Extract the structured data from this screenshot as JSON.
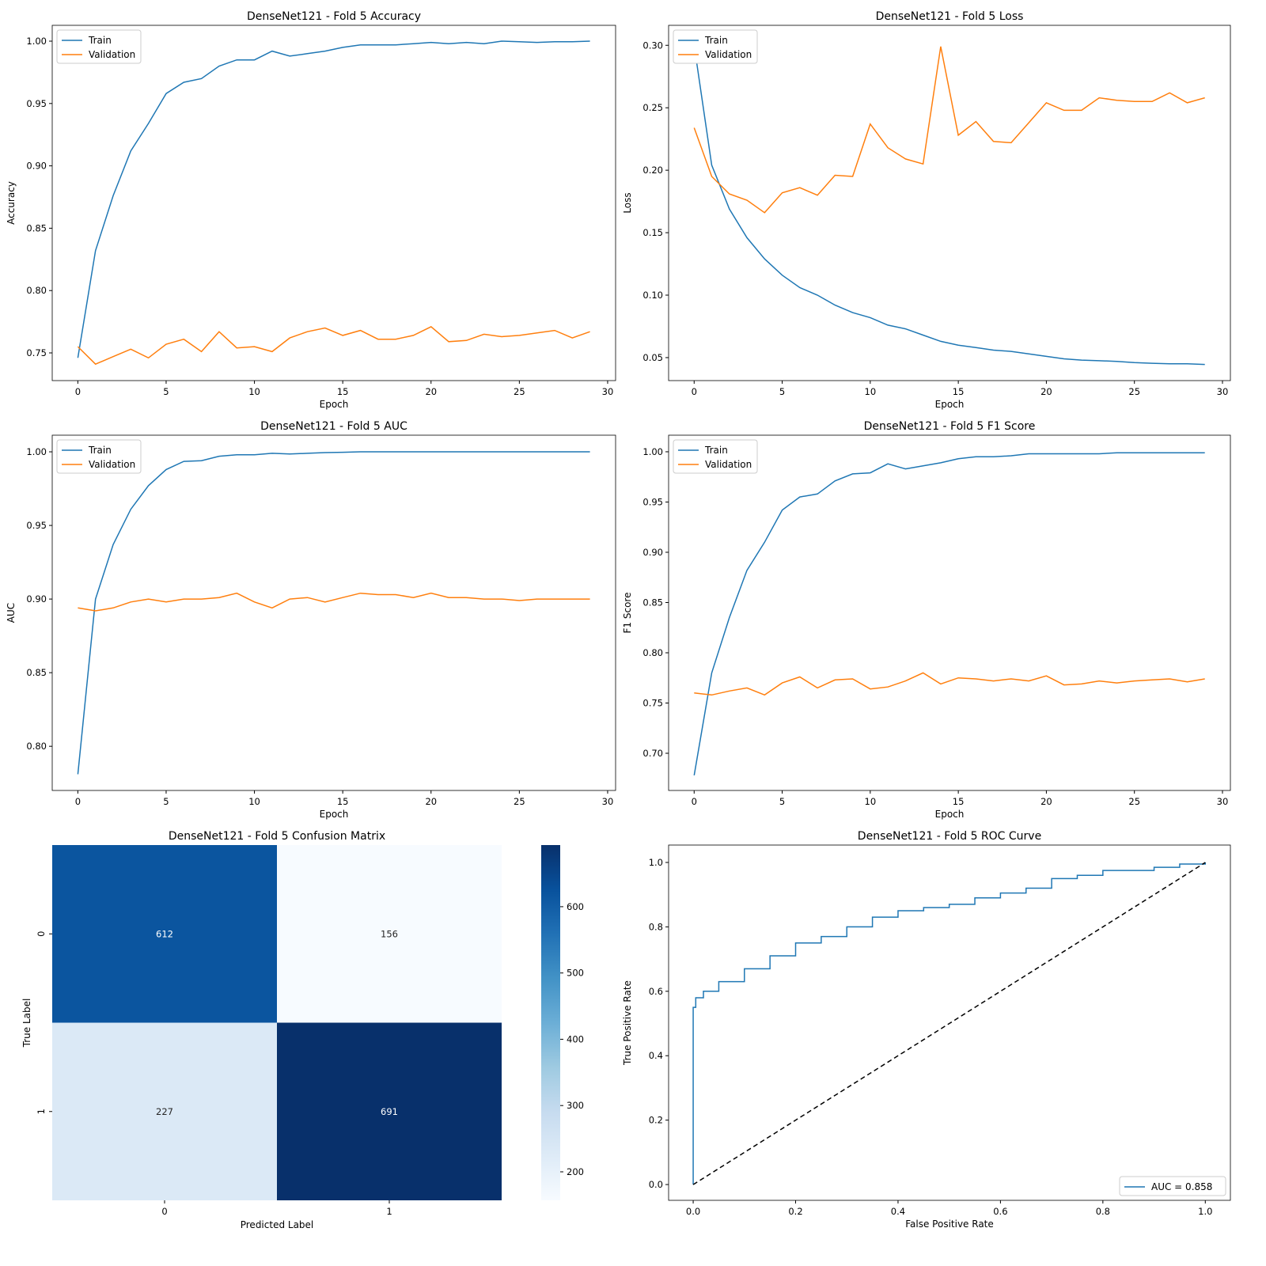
{
  "colors": {
    "train": "#1f77b4",
    "validation": "#ff7f0e",
    "diag": "#000000"
  },
  "chart_data": [
    {
      "type": "line",
      "id": "acc",
      "title": "DenseNet121 - Fold 5 Accuracy",
      "xlabel": "Epoch",
      "ylabel": "Accuracy",
      "xlim": [
        -1.45,
        30.45
      ],
      "ylim": [
        0.7278,
        1.0127
      ],
      "xticks": [
        0,
        5,
        10,
        15,
        20,
        25,
        30
      ],
      "xtick_labels": [
        "0",
        "5",
        "10",
        "15",
        "20",
        "25",
        "30"
      ],
      "yticks": [
        0.75,
        0.8,
        0.85,
        0.9,
        0.95,
        1.0
      ],
      "ytick_labels": [
        "0.75",
        "0.80",
        "0.85",
        "0.90",
        "0.95",
        "1.00"
      ],
      "legend": "upper-left",
      "series": [
        {
          "name": "Train",
          "values": [
            0.746,
            0.832,
            0.876,
            0.912,
            0.934,
            0.958,
            0.967,
            0.97,
            0.98,
            0.985,
            0.985,
            0.992,
            0.988,
            0.99,
            0.992,
            0.995,
            0.997,
            0.997,
            0.997,
            0.998,
            0.999,
            0.998,
            0.999,
            0.998,
            1.0,
            0.9995,
            0.999,
            0.9995,
            0.9995,
            1.0
          ]
        },
        {
          "name": "Validation",
          "values": [
            0.755,
            0.741,
            0.747,
            0.753,
            0.746,
            0.757,
            0.761,
            0.751,
            0.767,
            0.754,
            0.755,
            0.751,
            0.762,
            0.767,
            0.77,
            0.764,
            0.768,
            0.761,
            0.761,
            0.764,
            0.771,
            0.759,
            0.76,
            0.765,
            0.763,
            0.764,
            0.766,
            0.768,
            0.762,
            0.767
          ]
        }
      ]
    },
    {
      "type": "line",
      "id": "loss",
      "title": "DenseNet121 - Fold 5 Loss",
      "xlabel": "Epoch",
      "ylabel": "Loss",
      "xlim": [
        -1.45,
        30.45
      ],
      "ylim": [
        0.0316,
        0.316
      ],
      "xticks": [
        0,
        5,
        10,
        15,
        20,
        25,
        30
      ],
      "xtick_labels": [
        "0",
        "5",
        "10",
        "15",
        "20",
        "25",
        "30"
      ],
      "yticks": [
        0.05,
        0.1,
        0.15,
        0.2,
        0.25,
        0.3
      ],
      "ytick_labels": [
        "0.05",
        "0.10",
        "0.15",
        "0.20",
        "0.25",
        "0.30"
      ],
      "legend": "upper-left",
      "series": [
        {
          "name": "Train",
          "values": [
            0.3,
            0.204,
            0.169,
            0.146,
            0.129,
            0.116,
            0.106,
            0.1,
            0.092,
            0.086,
            0.082,
            0.076,
            0.073,
            0.068,
            0.063,
            0.06,
            0.058,
            0.056,
            0.055,
            0.053,
            0.051,
            0.049,
            0.048,
            0.0475,
            0.047,
            0.046,
            0.0455,
            0.045,
            0.045,
            0.0445
          ]
        },
        {
          "name": "Validation",
          "values": [
            0.234,
            0.195,
            0.181,
            0.176,
            0.166,
            0.182,
            0.186,
            0.18,
            0.196,
            0.195,
            0.237,
            0.218,
            0.209,
            0.205,
            0.299,
            0.228,
            0.239,
            0.223,
            0.222,
            0.238,
            0.254,
            0.248,
            0.248,
            0.258,
            0.256,
            0.255,
            0.255,
            0.262,
            0.254,
            0.258
          ]
        }
      ]
    },
    {
      "type": "line",
      "id": "auc",
      "title": "DenseNet121 - Fold 5 AUC",
      "xlabel": "Epoch",
      "ylabel": "AUC",
      "xlim": [
        -1.45,
        30.45
      ],
      "ylim": [
        0.77,
        1.0113
      ],
      "xticks": [
        0,
        5,
        10,
        15,
        20,
        25,
        30
      ],
      "xtick_labels": [
        "0",
        "5",
        "10",
        "15",
        "20",
        "25",
        "30"
      ],
      "yticks": [
        0.8,
        0.85,
        0.9,
        0.95,
        1.0
      ],
      "ytick_labels": [
        "0.80",
        "0.85",
        "0.90",
        "0.95",
        "1.00"
      ],
      "legend": "upper-left",
      "series": [
        {
          "name": "Train",
          "values": [
            0.781,
            0.9,
            0.937,
            0.961,
            0.977,
            0.988,
            0.9935,
            0.994,
            0.997,
            0.998,
            0.998,
            0.999,
            0.9985,
            0.999,
            0.9995,
            0.9997,
            1.0,
            1.0,
            1.0,
            1.0,
            1.0,
            1.0,
            1.0,
            1.0,
            1.0,
            1.0,
            1.0,
            1.0,
            1.0,
            1.0
          ]
        },
        {
          "name": "Validation",
          "values": [
            0.894,
            0.892,
            0.894,
            0.898,
            0.9,
            0.898,
            0.9,
            0.9,
            0.901,
            0.904,
            0.898,
            0.894,
            0.9,
            0.901,
            0.898,
            0.901,
            0.904,
            0.903,
            0.903,
            0.901,
            0.904,
            0.901,
            0.901,
            0.9,
            0.9,
            0.899,
            0.9,
            0.9,
            0.9,
            0.9
          ]
        }
      ]
    },
    {
      "type": "line",
      "id": "f1",
      "title": "DenseNet121 - Fold 5 F1 Score",
      "xlabel": "Epoch",
      "ylabel": "F1 Score",
      "xlim": [
        -1.45,
        30.45
      ],
      "ylim": [
        0.663,
        1.0165
      ],
      "xticks": [
        0,
        5,
        10,
        15,
        20,
        25,
        30
      ],
      "xtick_labels": [
        "0",
        "5",
        "10",
        "15",
        "20",
        "25",
        "30"
      ],
      "yticks": [
        0.7,
        0.75,
        0.8,
        0.85,
        0.9,
        0.95,
        1.0
      ],
      "ytick_labels": [
        "0.70",
        "0.75",
        "0.80",
        "0.85",
        "0.90",
        "0.95",
        "1.00"
      ],
      "legend": "upper-left",
      "series": [
        {
          "name": "Train",
          "values": [
            0.678,
            0.78,
            0.835,
            0.882,
            0.91,
            0.942,
            0.955,
            0.958,
            0.971,
            0.978,
            0.979,
            0.988,
            0.983,
            0.986,
            0.989,
            0.993,
            0.995,
            0.995,
            0.996,
            0.998,
            0.998,
            0.998,
            0.998,
            0.998,
            0.999,
            0.999,
            0.999,
            0.999,
            0.999,
            0.999
          ]
        },
        {
          "name": "Validation",
          "values": [
            0.76,
            0.758,
            0.762,
            0.765,
            0.758,
            0.77,
            0.776,
            0.765,
            0.773,
            0.774,
            0.764,
            0.766,
            0.772,
            0.78,
            0.769,
            0.775,
            0.774,
            0.772,
            0.774,
            0.772,
            0.777,
            0.768,
            0.769,
            0.772,
            0.77,
            0.772,
            0.773,
            0.774,
            0.771,
            0.774
          ]
        }
      ]
    },
    {
      "type": "heatmap",
      "id": "cm",
      "title": "DenseNet121 - Fold 5 Confusion Matrix",
      "xlabel": "Predicted Label",
      "ylabel": "True Label",
      "x_categories": [
        "0",
        "1"
      ],
      "y_categories": [
        "0",
        "1"
      ],
      "values": [
        [
          612,
          156
        ],
        [
          227,
          691
        ]
      ],
      "value_labels": [
        [
          "612",
          "156"
        ],
        [
          "227",
          "691"
        ]
      ],
      "cell_colors": [
        [
          "#0b559f",
          "#f7fbff"
        ],
        [
          "#dbe9f6",
          "#08306b"
        ]
      ],
      "colorbar": {
        "range": [
          157,
          693
        ],
        "ticks": [
          200,
          300,
          400,
          500,
          600
        ],
        "tick_labels": [
          "200",
          "300",
          "400",
          "500",
          "600"
        ],
        "colormap": "Blues"
      }
    },
    {
      "type": "line",
      "id": "roc",
      "title": "DenseNet121 - Fold 5 ROC Curve",
      "xlabel": "False Positive Rate",
      "ylabel": "True Positive Rate",
      "xlim": [
        -0.048,
        1.049
      ],
      "ylim": [
        -0.049,
        1.054
      ],
      "xticks": [
        0,
        0.2,
        0.4,
        0.6,
        0.8,
        1.0
      ],
      "xtick_labels": [
        "0.0",
        "0.2",
        "0.4",
        "0.6",
        "0.8",
        "1.0"
      ],
      "yticks": [
        0,
        0.2,
        0.4,
        0.6,
        0.8,
        1.0
      ],
      "ytick_labels": [
        "0.0",
        "0.2",
        "0.4",
        "0.6",
        "0.8",
        "1.0"
      ],
      "legend": "lower-right",
      "series": [
        {
          "name": "AUC = 0.858",
          "x": [
            0,
            0,
            0.005,
            0.02,
            0.05,
            0.1,
            0.15,
            0.2,
            0.25,
            0.3,
            0.35,
            0.4,
            0.45,
            0.5,
            0.55,
            0.6,
            0.65,
            0.7,
            0.75,
            0.8,
            0.9,
            0.95,
            1.0
          ],
          "y": [
            0,
            0.55,
            0.58,
            0.6,
            0.63,
            0.67,
            0.71,
            0.75,
            0.77,
            0.8,
            0.83,
            0.85,
            0.86,
            0.87,
            0.89,
            0.905,
            0.92,
            0.95,
            0.96,
            0.975,
            0.985,
            0.995,
            1.0
          ]
        },
        {
          "name": "chance",
          "x": [
            0,
            1
          ],
          "y": [
            0,
            1
          ],
          "dashed": true
        }
      ]
    }
  ]
}
